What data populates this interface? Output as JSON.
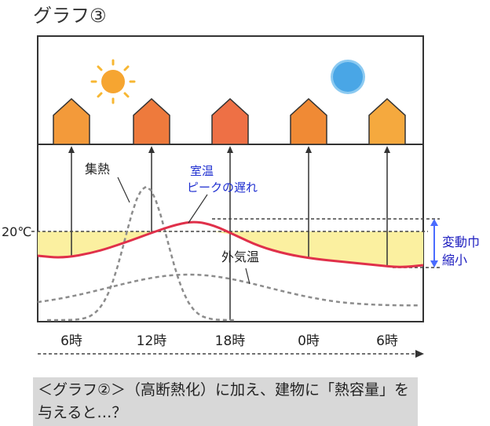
{
  "title": "グラフ③",
  "caption": "＜グラフ②＞（高断熱化）に加え、建物に「熱容量」を与えると…？",
  "icons": {
    "sun": "sun-icon",
    "moon": "moon-icon",
    "house": "house-icon"
  },
  "labels": {
    "heat_collection": "集熱",
    "room_temp_line1": "室温",
    "room_temp_line2": "ピークの遅れ",
    "outside_temp": "外気温",
    "twenty_c": "20℃",
    "range_line1": "変動巾",
    "range_line2": "縮小"
  },
  "colors": {
    "room_temp_curve": "#e0304a",
    "band_fill": "#fbf0a0",
    "range_text": "#2020c0",
    "range_arrow": "#4a6cff",
    "annotation_blue": "#1f2fd0"
  },
  "chart_data": {
    "type": "line",
    "title": "",
    "xlabel": "",
    "ylabel": "",
    "categories": [
      "6時",
      "12時",
      "18時",
      "0時",
      "6時"
    ],
    "reference_line": {
      "label": "20℃",
      "value": 20
    },
    "series": [
      {
        "name": "集熱",
        "style": "dashed",
        "shape": "single peak between 6時 and 18時, peaking near 12時"
      },
      {
        "name": "室温",
        "style": "solid",
        "shape": "peak delayed to about 15時, small amplitude around 20℃"
      },
      {
        "name": "外気温",
        "style": "dashed",
        "shape": "low curve peaking near 14時, minimum near 6時"
      }
    ]
  }
}
